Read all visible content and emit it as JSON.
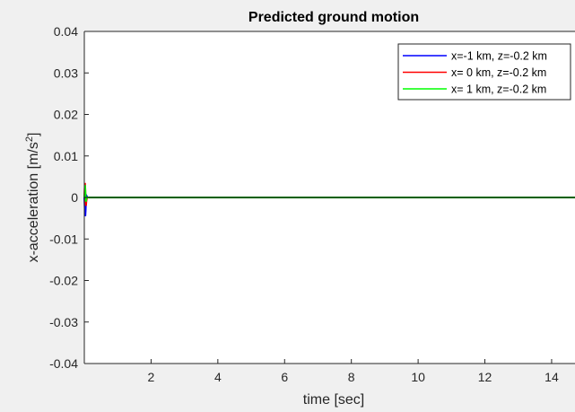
{
  "chart_data": {
    "type": "line",
    "title": "Predicted ground motion",
    "xlabel": "time [sec]",
    "ylabel": "x-acceleration [m/s",
    "ylabel_superscript": "2",
    "ylabel_suffix": "]",
    "xlim": [
      0,
      14.7
    ],
    "ylim": [
      -0.04,
      0.04
    ],
    "xticks": [
      2,
      4,
      6,
      8,
      10,
      12,
      14
    ],
    "xtick_labels": [
      "2",
      "4",
      "6",
      "8",
      "10",
      "12",
      "14"
    ],
    "yticks": [
      0.04,
      0.03,
      0.02,
      0.01,
      0,
      -0.01,
      -0.02,
      -0.03,
      -0.04
    ],
    "ytick_labels": [
      "0.04",
      "0.03",
      "0.02",
      "0.01",
      "0",
      "-0.01",
      "-0.02",
      "-0.03",
      "-0.04"
    ],
    "grid": false,
    "legend_position": "top-right",
    "baseline": {
      "y": 0,
      "color": "#000000"
    },
    "series": [
      {
        "name": "x=-1 km, z=-0.2 km",
        "color": "#0000ff",
        "x": [
          0,
          0.01,
          0.02,
          0.03,
          0.04,
          0.05,
          0.06,
          0.08,
          0.1,
          0.15,
          0.3,
          1,
          14.7
        ],
        "y": [
          0,
          -0.002,
          -0.004,
          -0.0045,
          -0.003,
          -0.001,
          0.0005,
          0.0002,
          0,
          0,
          0,
          0,
          0
        ]
      },
      {
        "name": "x= 0 km, z=-0.2 km",
        "color": "#ff0000",
        "x": [
          0,
          0.01,
          0.02,
          0.03,
          0.04,
          0.05,
          0.06,
          0.08,
          0.1,
          0.15,
          0.3,
          1,
          14.7
        ],
        "y": [
          0,
          0.002,
          0.0035,
          0.002,
          -0.001,
          -0.002,
          -0.001,
          0,
          0,
          0,
          0,
          0,
          0
        ]
      },
      {
        "name": "x= 1 km, z=-0.2 km",
        "color": "#00ff00",
        "x": [
          0,
          0.01,
          0.02,
          0.03,
          0.04,
          0.05,
          0.06,
          0.08,
          0.1,
          0.15,
          0.3,
          1,
          14.7
        ],
        "y": [
          0,
          0.001,
          0.003,
          0.0015,
          0,
          -0.001,
          0,
          0,
          0,
          0,
          0,
          0,
          0
        ]
      }
    ]
  }
}
